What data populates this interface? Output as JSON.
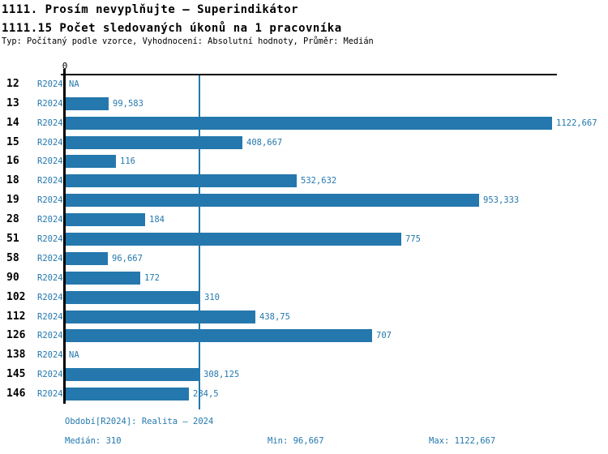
{
  "header": {
    "title_line1": "1111. Prosím nevyplňujte – Superindikátor",
    "title_line2": "1111.15 Počet sledovaných úkonů na 1 pracovníka",
    "subtitle": "Typ: Počítaný podle vzorce, Vyhodnocení: Absolutní hodnoty, Průměr: Medián"
  },
  "chart_data": {
    "type": "bar",
    "orientation": "horizontal",
    "series_label": "R2024",
    "categories": [
      "12",
      "13",
      "14",
      "15",
      "16",
      "18",
      "19",
      "28",
      "51",
      "58",
      "90",
      "102",
      "112",
      "126",
      "138",
      "145",
      "146"
    ],
    "values": [
      null,
      99.583,
      1122.667,
      408.667,
      116,
      532.632,
      953.333,
      184,
      775,
      96.667,
      172,
      310,
      438.75,
      707,
      null,
      308.125,
      284.5
    ],
    "value_labels": [
      "NA",
      "99,583",
      "1122,667",
      "408,667",
      "116",
      "532,632",
      "953,333",
      "184",
      "775",
      "96,667",
      "172",
      "310",
      "438,75",
      "707",
      "NA",
      "308,125",
      "284,5"
    ],
    "na_label": "NA",
    "x_axis": {
      "zero_label": "0",
      "xmin": 0,
      "xmax": 1122.667
    },
    "median_reference": 310,
    "legend_position": "none",
    "grid": false,
    "colors": {
      "bar": "#2478ad",
      "label_blue": "#2478ad",
      "axis": "#000000",
      "category_text": "#000000"
    }
  },
  "footer": {
    "period": "Období[R2024]: Realita – 2024",
    "median": "Medián: 310",
    "min": "Min: 96,667",
    "max": "Max: 1122,667"
  }
}
